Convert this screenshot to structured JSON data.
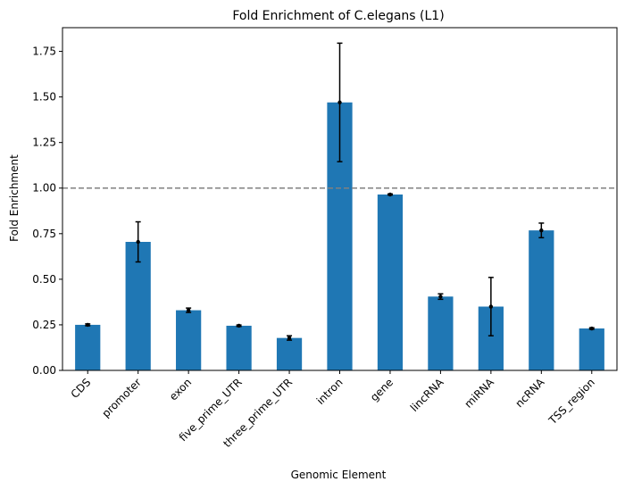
{
  "chart_data": {
    "type": "bar",
    "title": "Fold Enrichment of C.elegans (L1)",
    "xlabel": "Genomic Element",
    "ylabel": "Fold Enrichment",
    "categories": [
      "CDS",
      "promoter",
      "exon",
      "five_prime_UTR",
      "three_prime_UTR",
      "intron",
      "gene",
      "lincRNA",
      "miRNA",
      "ncRNA",
      "TSS_region"
    ],
    "values": [
      0.25,
      0.705,
      0.33,
      0.245,
      0.178,
      1.47,
      0.965,
      0.405,
      0.35,
      0.768,
      0.23
    ],
    "errors": [
      0.005,
      0.11,
      0.012,
      0.004,
      0.012,
      0.325,
      0.003,
      0.015,
      0.16,
      0.04,
      0.004
    ],
    "yticks": [
      0.0,
      0.25,
      0.5,
      0.75,
      1.0,
      1.25,
      1.5,
      1.75
    ],
    "ytick_labels": [
      "0.00",
      "0.25",
      "0.50",
      "0.75",
      "1.00",
      "1.25",
      "1.50",
      "1.75"
    ],
    "ylim": [
      0,
      1.88
    ],
    "reference_line": 1.0,
    "grid": false,
    "colors": {
      "bar": "#1f77b4",
      "error": "#000000",
      "reference_line": "#808080"
    }
  }
}
